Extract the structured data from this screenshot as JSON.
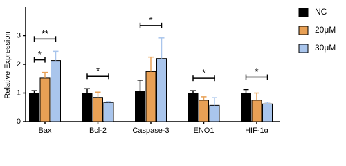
{
  "chart_data": {
    "type": "bar",
    "y_label": "Relative Expression",
    "categories": [
      "Bax",
      "Bcl-2",
      "Caspase-3",
      "ENO1",
      "HIF-1α"
    ],
    "series": [
      {
        "name": "NC",
        "color": "#000000",
        "values": [
          1.0,
          1.0,
          1.05,
          1.0,
          1.0
        ],
        "errors": [
          0.08,
          0.15,
          0.4,
          0.08,
          0.12
        ]
      },
      {
        "name": "20μM",
        "color": "#e8a055",
        "values": [
          1.52,
          0.85,
          1.75,
          0.75,
          0.75
        ],
        "errors": [
          0.2,
          0.18,
          0.5,
          0.12,
          0.25
        ]
      },
      {
        "name": "30μM",
        "color": "#a9c5ec",
        "values": [
          2.13,
          0.67,
          2.2,
          0.57,
          0.62
        ],
        "errors": [
          0.32,
          0.03,
          0.72,
          0.27,
          0.06
        ]
      }
    ],
    "ylim": [
      0,
      4
    ],
    "yticks": [
      0,
      1,
      2,
      3
    ],
    "significance": [
      {
        "category": "Bax",
        "from": "NC",
        "to": "20μM",
        "label": "*"
      },
      {
        "category": "Bax",
        "from": "NC",
        "to": "30μM",
        "label": "**"
      },
      {
        "category": "Bcl-2",
        "from": "NC",
        "to": "30μM",
        "label": "*"
      },
      {
        "category": "Caspase-3",
        "from": "NC",
        "to": "30μM",
        "label": "*"
      },
      {
        "category": "ENO1",
        "from": "NC",
        "to": "30μM",
        "label": "*"
      },
      {
        "category": "HIF-1α",
        "from": "NC",
        "to": "30μM",
        "label": "*"
      }
    ],
    "legend": "right"
  }
}
